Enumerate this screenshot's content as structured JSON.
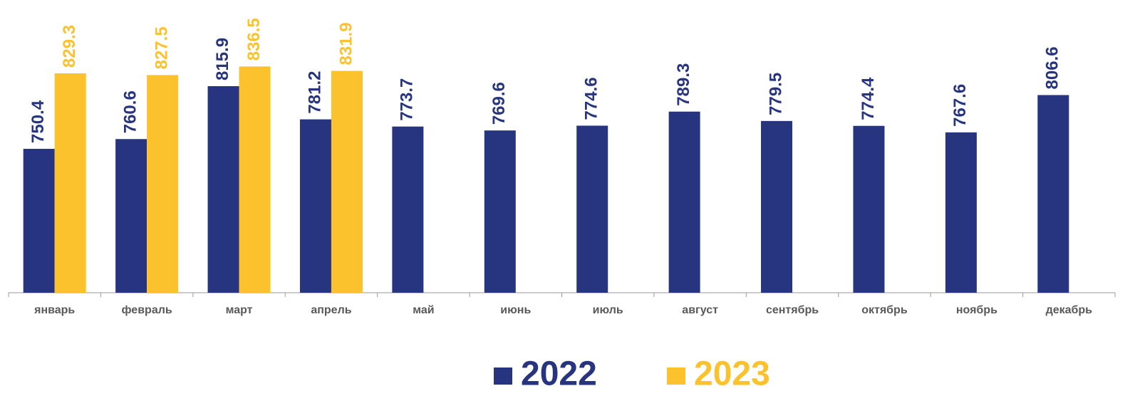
{
  "chart_data": {
    "type": "bar",
    "categories": [
      "январь",
      "февраль",
      "март",
      "апрель",
      "май",
      "июнь",
      "июль",
      "август",
      "сентябрь",
      "октябрь",
      "ноябрь",
      "декабрь"
    ],
    "series": [
      {
        "name": "2022",
        "color": "#27347f",
        "values": [
          750.4,
          760.6,
          815.9,
          781.2,
          773.7,
          769.6,
          774.6,
          789.3,
          779.5,
          774.4,
          767.6,
          806.6
        ]
      },
      {
        "name": "2023",
        "color": "#fbc22d",
        "values": [
          829.3,
          827.5,
          836.5,
          831.9,
          null,
          null,
          null,
          null,
          null,
          null,
          null,
          null
        ]
      }
    ],
    "ylim": [
      600,
      900
    ],
    "legend": "bottom"
  }
}
